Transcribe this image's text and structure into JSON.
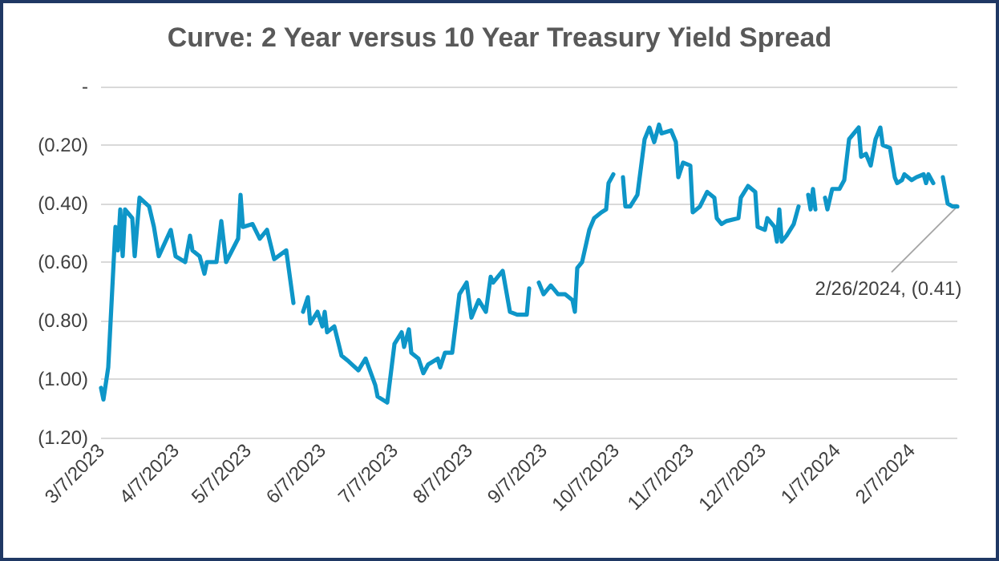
{
  "chart_data": {
    "type": "line",
    "title": "Curve: 2 Year versus 10 Year Treasury Yield Spread",
    "x": [
      "2023-03-07",
      "2023-03-08",
      "2023-03-10",
      "2023-03-13",
      "2023-03-14",
      "2023-03-15",
      "2023-03-16",
      "2023-03-17",
      "2023-03-20",
      "2023-03-21",
      "2023-03-23",
      "2023-03-27",
      "2023-03-29",
      "2023-03-31",
      "2023-04-05",
      "2023-04-07",
      "2023-04-11",
      "2023-04-13",
      "2023-04-14",
      "2023-04-17",
      "2023-04-19",
      "2023-04-20",
      "2023-04-24",
      "2023-04-26",
      "2023-04-28",
      "2023-05-03",
      "2023-05-04",
      "2023-05-05",
      "2023-05-09",
      "2023-05-12",
      "2023-05-15",
      "2023-05-18",
      "2023-05-23",
      "2023-05-26",
      "2023-05-29",
      "2023-05-30",
      "2023-06-01",
      "2023-06-02",
      "2023-06-05",
      "2023-06-07",
      "2023-06-08",
      "2023-06-09",
      "2023-06-12",
      "2023-06-15",
      "2023-06-18",
      "2023-06-22",
      "2023-06-25",
      "2023-06-29",
      "2023-06-30",
      "2023-07-04",
      "2023-07-07",
      "2023-07-10",
      "2023-07-11",
      "2023-07-13",
      "2023-07-14",
      "2023-07-17",
      "2023-07-19",
      "2023-07-21",
      "2023-07-25",
      "2023-07-26",
      "2023-07-28",
      "2023-07-31",
      "2023-08-03",
      "2023-08-06",
      "2023-08-08",
      "2023-08-11",
      "2023-08-14",
      "2023-08-16",
      "2023-08-17",
      "2023-08-21",
      "2023-08-24",
      "2023-08-27",
      "2023-08-31",
      "2023-09-01",
      "2023-09-03",
      "2023-09-05",
      "2023-09-07",
      "2023-09-10",
      "2023-09-13",
      "2023-09-16",
      "2023-09-19",
      "2023-09-20",
      "2023-09-21",
      "2023-09-23",
      "2023-09-26",
      "2023-09-28",
      "2023-10-01",
      "2023-10-03",
      "2023-10-04",
      "2023-10-06",
      "2023-10-08",
      "2023-10-10",
      "2023-10-11",
      "2023-10-13",
      "2023-10-16",
      "2023-10-19",
      "2023-10-21",
      "2023-10-23",
      "2023-10-25",
      "2023-10-26",
      "2023-10-30",
      "2023-11-01",
      "2023-11-02",
      "2023-11-04",
      "2023-11-07",
      "2023-11-08",
      "2023-11-11",
      "2023-11-14",
      "2023-11-17",
      "2023-11-18",
      "2023-11-20",
      "2023-11-22",
      "2023-11-27",
      "2023-11-28",
      "2023-12-01",
      "2023-12-04",
      "2023-12-05",
      "2023-12-08",
      "2023-12-09",
      "2023-12-12",
      "2023-12-13",
      "2023-12-14",
      "2023-12-15",
      "2023-12-17",
      "2023-12-20",
      "2023-12-22",
      "2023-12-25",
      "2023-12-26",
      "2023-12-27",
      "2023-12-28",
      "2023-12-29",
      "2023-12-31",
      "2024-01-02",
      "2024-01-03",
      "2024-01-05",
      "2024-01-08",
      "2024-01-10",
      "2024-01-12",
      "2024-01-15",
      "2024-01-16",
      "2024-01-17",
      "2024-01-19",
      "2024-01-21",
      "2024-01-23",
      "2024-01-25",
      "2024-01-26",
      "2024-01-29",
      "2024-01-31",
      "2024-02-01",
      "2024-02-03",
      "2024-02-04",
      "2024-02-07",
      "2024-02-09",
      "2024-02-12",
      "2024-02-13",
      "2024-02-14",
      "2024-02-16",
      "2024-02-18",
      "2024-02-20",
      "2024-02-22",
      "2024-02-24",
      "2024-02-26"
    ],
    "series": [
      {
        "color": "#0e96c8",
        "values": [
          -1.03,
          -1.07,
          -0.96,
          -0.48,
          -0.56,
          -0.42,
          -0.58,
          -0.42,
          -0.45,
          -0.58,
          -0.38,
          -0.41,
          -0.48,
          -0.58,
          -0.49,
          -0.58,
          -0.6,
          -0.51,
          -0.56,
          -0.58,
          -0.64,
          -0.6,
          -0.6,
          -0.46,
          -0.6,
          -0.52,
          -0.37,
          -0.48,
          -0.47,
          -0.52,
          -0.49,
          -0.59,
          -0.56,
          -0.74,
          null,
          -0.77,
          -0.72,
          -0.81,
          -0.77,
          -0.82,
          -0.77,
          -0.84,
          -0.82,
          -0.92,
          -0.94,
          -0.97,
          -0.93,
          -1.02,
          -1.06,
          -1.08,
          -0.88,
          -0.84,
          -0.89,
          -0.83,
          -0.91,
          -0.93,
          -0.98,
          -0.95,
          -0.93,
          -0.96,
          -0.91,
          -0.91,
          -0.71,
          -0.67,
          -0.79,
          -0.73,
          -0.77,
          -0.65,
          -0.67,
          -0.63,
          -0.77,
          -0.78,
          -0.78,
          -0.69,
          null,
          -0.67,
          -0.71,
          -0.68,
          -0.71,
          -0.71,
          -0.73,
          -0.77,
          -0.62,
          -0.6,
          -0.49,
          -0.45,
          -0.43,
          -0.42,
          -0.33,
          -0.3,
          null,
          -0.31,
          -0.41,
          -0.41,
          -0.37,
          -0.18,
          -0.14,
          -0.19,
          -0.13,
          -0.16,
          -0.15,
          -0.19,
          -0.31,
          -0.26,
          -0.27,
          -0.43,
          -0.41,
          -0.36,
          -0.38,
          -0.45,
          -0.47,
          -0.46,
          -0.45,
          -0.38,
          -0.34,
          -0.36,
          -0.48,
          -0.49,
          -0.45,
          -0.48,
          -0.53,
          -0.42,
          -0.53,
          -0.51,
          -0.47,
          -0.41,
          null,
          -0.37,
          -0.42,
          -0.35,
          -0.42,
          null,
          -0.38,
          -0.42,
          -0.35,
          -0.35,
          -0.32,
          -0.18,
          -0.15,
          -0.14,
          -0.24,
          -0.23,
          -0.27,
          -0.18,
          -0.14,
          -0.2,
          -0.21,
          -0.31,
          -0.33,
          -0.32,
          -0.3,
          -0.32,
          -0.31,
          -0.3,
          -0.33,
          -0.3,
          -0.33,
          null,
          -0.31,
          -0.4,
          -0.41,
          -0.41
        ]
      }
    ],
    "xlim": [
      "2023-03-07",
      "2024-02-26"
    ],
    "xticks": [
      {
        "value": "2023-03-07",
        "label": "3/7/2023"
      },
      {
        "value": "2023-04-07",
        "label": "4/7/2023"
      },
      {
        "value": "2023-05-07",
        "label": "5/7/2023"
      },
      {
        "value": "2023-06-07",
        "label": "6/7/2023"
      },
      {
        "value": "2023-07-07",
        "label": "7/7/2023"
      },
      {
        "value": "2023-08-07",
        "label": "8/7/2023"
      },
      {
        "value": "2023-09-07",
        "label": "9/7/2023"
      },
      {
        "value": "2023-10-07",
        "label": "10/7/2023"
      },
      {
        "value": "2023-11-07",
        "label": "11/7/2023"
      },
      {
        "value": "2023-12-07",
        "label": "12/7/2023"
      },
      {
        "value": "2024-01-07",
        "label": "1/7/2024"
      },
      {
        "value": "2024-02-07",
        "label": "2/7/2024"
      }
    ],
    "ylim": [
      -1.2,
      0
    ],
    "yticks": [
      {
        "value": 0,
        "label": "-"
      },
      {
        "value": -0.2,
        "label": "(0.20)"
      },
      {
        "value": -0.4,
        "label": "(0.40)"
      },
      {
        "value": -0.6,
        "label": "(0.60)"
      },
      {
        "value": -0.8,
        "label": "(0.80)"
      },
      {
        "value": -1.0,
        "label": "(1.00)"
      },
      {
        "value": -1.2,
        "label": "(1.20)"
      }
    ],
    "grid": "y",
    "marker": "none",
    "line_style": "solid",
    "annotations": [
      {
        "text": "2/26/2024, (0.41)",
        "x": "2024-02-26",
        "y": -0.41
      }
    ]
  }
}
